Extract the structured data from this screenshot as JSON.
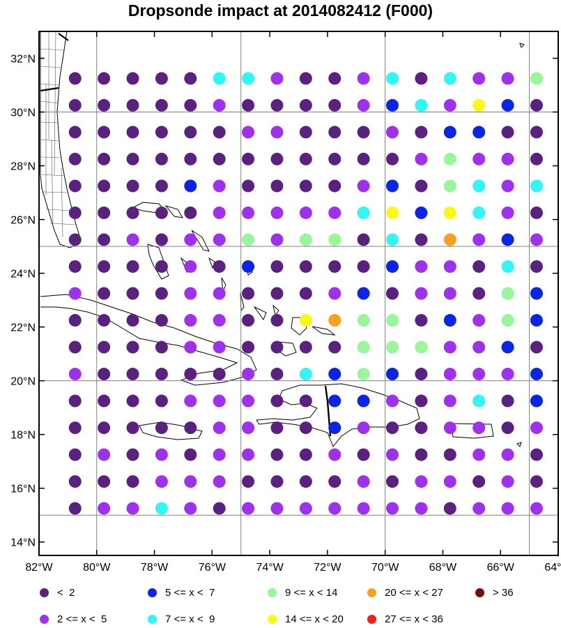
{
  "title": "Dropsonde impact at 2014082412 (F000)",
  "map": {
    "lon_range": [
      -82,
      -64
    ],
    "lat_range": [
      13.5,
      33
    ],
    "lon_ticks": [
      {
        "value": -82,
        "label": "82°W"
      },
      {
        "value": -80,
        "label": "80°W"
      },
      {
        "value": -78,
        "label": "78°W"
      },
      {
        "value": -76,
        "label": "76°W"
      },
      {
        "value": -74,
        "label": "74°W"
      },
      {
        "value": -72,
        "label": "72°W"
      },
      {
        "value": -70,
        "label": "70°W"
      },
      {
        "value": -68,
        "label": "68°W"
      },
      {
        "value": -66,
        "label": "66°W"
      },
      {
        "value": -64,
        "label": "64°W"
      }
    ],
    "lat_ticks": [
      {
        "value": 32,
        "label": "32°N"
      },
      {
        "value": 30,
        "label": "30°N"
      },
      {
        "value": 28,
        "label": "28°N"
      },
      {
        "value": 26,
        "label": "26°N"
      },
      {
        "value": 24,
        "label": "24°N"
      },
      {
        "value": 22,
        "label": "22°N"
      },
      {
        "value": 20,
        "label": "20°N"
      },
      {
        "value": 18,
        "label": "18°N"
      },
      {
        "value": 16,
        "label": "16°N"
      },
      {
        "value": 14,
        "label": "14°N"
      }
    ],
    "grid_lons": [
      -80,
      -75,
      -70,
      -65
    ],
    "grid_lats": [
      15,
      20,
      25,
      30
    ],
    "grid": true
  },
  "legend": [
    {
      "label": "<  2",
      "color": "#5b2180"
    },
    {
      "label": "5 <= x <  7",
      "color": "#0a24e8"
    },
    {
      "label": "9 <= x < 14",
      "color": "#98f79a"
    },
    {
      "label": "20 <= x < 27",
      "color": "#f8a11c"
    },
    {
      "label": "> 36",
      "color": "#7a0b0b"
    },
    {
      "label": "2 <= x <  5",
      "color": "#a030f0"
    },
    {
      "label": "7 <= x <  9",
      "color": "#30f6f6"
    },
    {
      "label": "14 <= x < 20",
      "color": "#fafa10"
    },
    {
      "label": "27 <= x < 36",
      "color": "#f81c1c"
    }
  ],
  "chart_data": {
    "type": "scatter",
    "title": "Dropsonde impact at 2014082412 (F000)",
    "points_lon": [
      -80.75,
      -79.75,
      -78.75,
      -77.75,
      -76.75,
      -75.75,
      -74.75,
      -73.75,
      -72.75,
      -71.75,
      -70.75,
      -69.75,
      -68.75,
      -67.75,
      -66.75,
      -65.75,
      -64.75
    ],
    "points_lat": [
      31.25,
      30.25,
      29.25,
      28.25,
      27.25,
      26.25,
      25.25,
      24.25,
      23.25,
      22.25,
      21.25,
      20.25,
      19.25,
      18.25,
      17.25,
      16.25,
      15.25
    ],
    "class_codes": {
      "D": "<  2",
      "P": "2 <= x <  5",
      "B": "5 <= x <  7",
      "C": "7 <= x <  9",
      "G": "9 <= x < 14",
      "Y": "14 <= x < 20",
      "O": "20 <= x < 27",
      "R": "27 <= x < 36",
      "M": "> 36"
    },
    "grid_classes": [
      "DDDDDCCPDDPCDCPPG",
      "DDDDDPDDDDPBCPYBD",
      "DDDDDDPPDDDPDBBDD",
      "DDDDDDDDDDDDPGPPD",
      "DDDDBPDDDDPBDGCPC",
      "DDDDDPPPPPCYBYCPD",
      "DDPDPPGPGGDCDOPBP",
      "DDDDPDBDDDDBPPDCD",
      "PDDDPPDDDPBDPPDGB",
      "DDDDPPDDYOGGDBPGB",
      "DDDDPPDDDDGGGPPBD",
      "PDDDDDPDCBGBDPPPB",
      "DDDDPPPDDBBPDPCDB",
      "DDDDDPPDDBPDDPPDP",
      "DPDPDPPDDPDPDDPPD",
      "DDDPPPDDDDPDPPDPD",
      "DPPCPDPPPPPPPDPPP"
    ]
  }
}
